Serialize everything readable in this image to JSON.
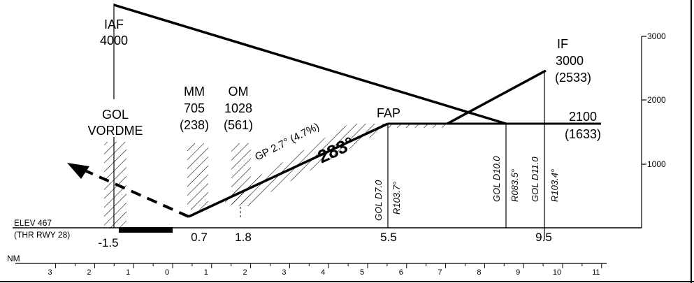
{
  "profile": {
    "iaf": {
      "name": "IAF",
      "altitude": "4000"
    },
    "if_fix": {
      "name": "IF",
      "altitude": "3000",
      "height": "(2533)"
    },
    "mm": {
      "name": "MM",
      "altitude": "705",
      "height": "(238)"
    },
    "om": {
      "name": "OM",
      "altitude": "1028",
      "height": "(561)"
    },
    "gol": {
      "line1": "GOL",
      "line2": "VORDME"
    },
    "fap": {
      "name": "FAP"
    },
    "level": {
      "altitude": "2100",
      "height": "(1633)"
    },
    "glidepath": {
      "label": "GP 2.7° (4.7%)",
      "course": "283°"
    },
    "elevation": {
      "line1": "ELEV  467",
      "line2": "(THR RWY 28)"
    },
    "fix_labels": {
      "d7_dme": "GOL D7.0",
      "d7_radial": "R103.7°",
      "d10_dme": "GOL D10.0",
      "d10_radial": "R083.5°",
      "d11_dme": "GOL D11.0",
      "d11_radial": "R103.4°"
    },
    "distance_marks": [
      "-1.5",
      "0.7",
      "1.8",
      "5.5",
      "9.5"
    ]
  },
  "altitude_scale": [
    "3000",
    "2000",
    "1000"
  ],
  "nm_scale": {
    "unit": "NM",
    "ticks": [
      "3",
      "2",
      "1",
      "0",
      "1",
      "2",
      "3",
      "4",
      "5",
      "6",
      "7",
      "8",
      "9",
      "10",
      "11"
    ]
  }
}
